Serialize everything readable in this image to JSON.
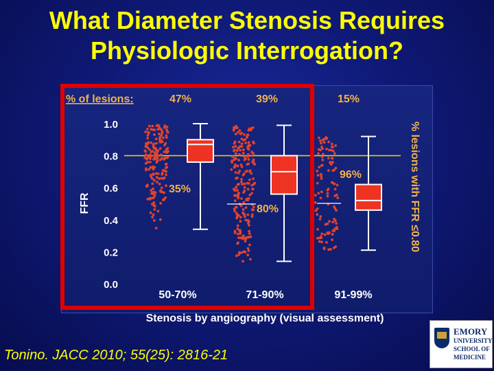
{
  "title_line1": "What Diameter Stenosis Requires",
  "title_line2": "Physiologic Interrogation?",
  "citation": "Tonino. JACC 2010; 55(25): 2816-21",
  "logo": {
    "line1": "EMORY",
    "line2": "UNIVERSITY",
    "line3": "SCHOOL OF",
    "line4": "MEDICINE"
  },
  "colors": {
    "background": "#0f1a78",
    "title": "#ffff00",
    "highlight_box": "#e00000",
    "box_fill": "#ee3322",
    "dots": "#e0442f",
    "threshold_line": "#e8d000"
  },
  "chart_data": {
    "type": "box",
    "xlabel": "Stenosis by angiography (visual assessment)",
    "ylabel": "FFR",
    "right_label": "% lesions with FFR ≤0.80",
    "top_label": "% of lesions:",
    "ylim": [
      0.0,
      1.0
    ],
    "yticks": [
      "1.0",
      "0.8",
      "0.6",
      "0.4",
      "0.2",
      "0.0"
    ],
    "threshold": 0.8,
    "categories": [
      "50-70%",
      "71-90%",
      "91-99%"
    ],
    "percent_of_lesions": [
      "47%",
      "39%",
      "15%"
    ],
    "percent_ffr_le_080": [
      "35%",
      "80%",
      "96%"
    ],
    "boxes": [
      {
        "min": 0.34,
        "q1": 0.76,
        "median": 0.87,
        "q3": 0.9,
        "max": 1.0
      },
      {
        "min": 0.14,
        "q1": 0.56,
        "median": 0.7,
        "q3": 0.8,
        "max": 0.99
      },
      {
        "min": 0.21,
        "q1": 0.46,
        "median": 0.52,
        "q3": 0.62,
        "max": 0.92
      }
    ],
    "highlight": "box around 50-70% and 71-90% groups"
  }
}
